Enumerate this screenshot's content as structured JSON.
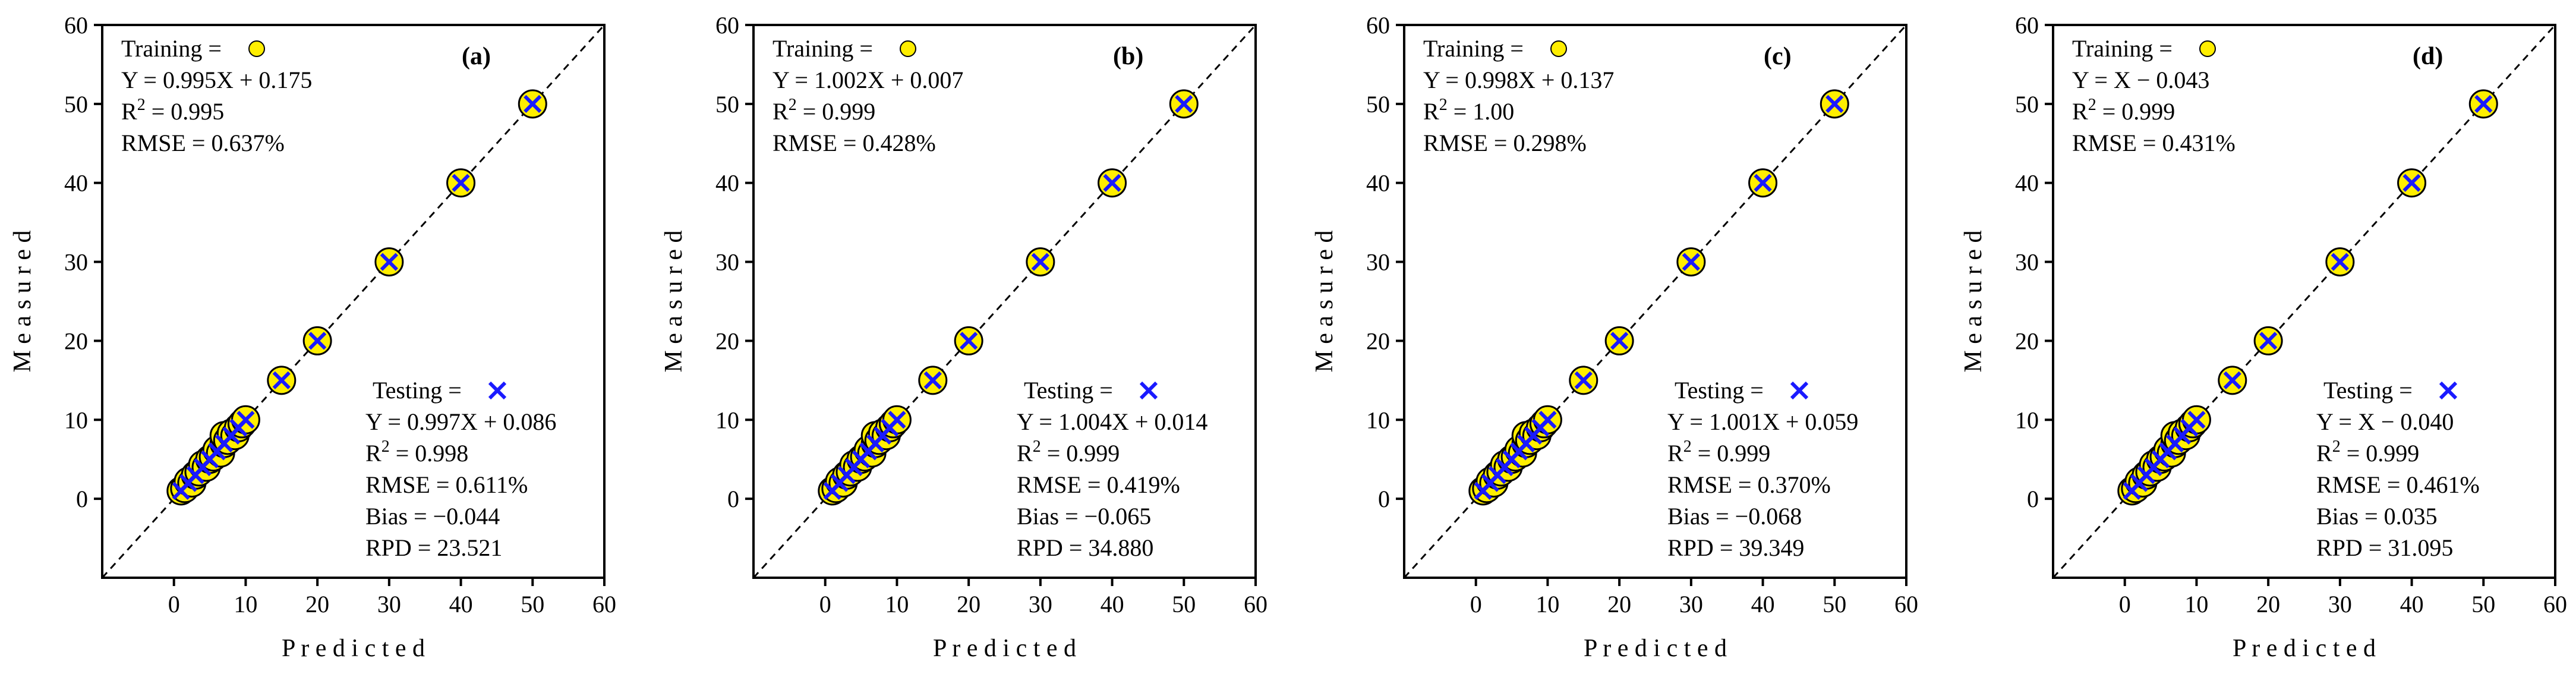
{
  "chart_data": [
    {
      "type": "scatter",
      "panel_label": "(a)",
      "xlabel": "P r e d i c t e d",
      "ylabel": "M e a s u r e d",
      "xlim": [
        -10,
        60
      ],
      "ylim": [
        -10,
        60
      ],
      "xticks": [
        "0",
        "10",
        "20",
        "30",
        "40",
        "50",
        "60"
      ],
      "yticks": [
        "0",
        "10",
        "20",
        "30",
        "40",
        "50",
        "60"
      ],
      "reference_line": "y = x",
      "training": {
        "legend": "Training =",
        "equation": "Y = 0.995X + 0.175",
        "r2_label": "R",
        "r2_value": " = 0.995",
        "rmse": "RMSE = 0.637%",
        "points": [
          [
            1,
            1
          ],
          [
            1.5,
            1.3
          ],
          [
            2,
            2.2
          ],
          [
            2.5,
            2
          ],
          [
            3,
            3
          ],
          [
            3.5,
            3.4
          ],
          [
            4,
            4.3
          ],
          [
            4.5,
            4
          ],
          [
            5,
            5
          ],
          [
            5.5,
            5.3
          ],
          [
            6,
            6.2
          ],
          [
            6.5,
            5.8
          ],
          [
            7,
            7
          ],
          [
            7,
            8
          ],
          [
            7.5,
            7.4
          ],
          [
            8,
            8.3
          ],
          [
            8.5,
            8
          ],
          [
            9,
            9
          ],
          [
            9.5,
            9.5
          ],
          [
            10,
            10
          ],
          [
            15,
            15
          ],
          [
            20,
            20
          ],
          [
            30,
            30
          ],
          [
            40,
            40
          ],
          [
            50,
            50
          ]
        ]
      },
      "testing": {
        "legend": "Testing =",
        "equation": "Y = 0.997X + 0.086",
        "r2_label": "R",
        "r2_value": " = 0.998",
        "rmse": "RMSE = 0.611%",
        "bias": "Bias = −0.044",
        "rpd": "RPD = 23.521",
        "points": [
          [
            1,
            1
          ],
          [
            2,
            2
          ],
          [
            3,
            3
          ],
          [
            4,
            4
          ],
          [
            5,
            5
          ],
          [
            6,
            6
          ],
          [
            7,
            7
          ],
          [
            8,
            8
          ],
          [
            9,
            9
          ],
          [
            10,
            10
          ],
          [
            15,
            15
          ],
          [
            20,
            20
          ],
          [
            30,
            30
          ],
          [
            40,
            40
          ],
          [
            50,
            50
          ]
        ]
      }
    },
    {
      "type": "scatter",
      "panel_label": "(b)",
      "xlabel": "P r e d i c t e d",
      "ylabel": "M e a s u r e d",
      "xlim": [
        -10,
        60
      ],
      "ylim": [
        -10,
        60
      ],
      "xticks": [
        "0",
        "10",
        "20",
        "30",
        "40",
        "50",
        "60"
      ],
      "yticks": [
        "0",
        "10",
        "20",
        "30",
        "40",
        "50",
        "60"
      ],
      "reference_line": "y = x",
      "training": {
        "legend": "Training =",
        "equation": "Y = 1.002X + 0.007",
        "r2_label": "R",
        "r2_value": " = 0.999",
        "rmse": "RMSE = 0.428%",
        "points": [
          [
            1,
            1
          ],
          [
            1.5,
            1.3
          ],
          [
            2,
            2.2
          ],
          [
            2.5,
            2
          ],
          [
            3,
            3
          ],
          [
            3.5,
            3.4
          ],
          [
            4,
            4.3
          ],
          [
            4.5,
            4
          ],
          [
            5,
            5
          ],
          [
            5.5,
            5.3
          ],
          [
            6,
            6.2
          ],
          [
            6.5,
            5.8
          ],
          [
            7,
            7
          ],
          [
            7,
            8
          ],
          [
            7.5,
            7.4
          ],
          [
            8,
            8.3
          ],
          [
            8.5,
            8
          ],
          [
            9,
            9
          ],
          [
            9.5,
            9.5
          ],
          [
            10,
            10
          ],
          [
            15,
            15
          ],
          [
            20,
            20
          ],
          [
            30,
            30
          ],
          [
            40,
            40
          ],
          [
            50,
            50
          ]
        ]
      },
      "testing": {
        "legend": "Testing =",
        "equation": "Y = 1.004X + 0.014",
        "r2_label": "R",
        "r2_value": " = 0.999",
        "rmse": "RMSE = 0.419%",
        "bias": "Bias = −0.065",
        "rpd": "RPD = 34.880",
        "points": [
          [
            1,
            1
          ],
          [
            2,
            2
          ],
          [
            3,
            3
          ],
          [
            4,
            4
          ],
          [
            5,
            5
          ],
          [
            6,
            6
          ],
          [
            7,
            7
          ],
          [
            8,
            8
          ],
          [
            9,
            9
          ],
          [
            10,
            10
          ],
          [
            15,
            15
          ],
          [
            20,
            20
          ],
          [
            30,
            30
          ],
          [
            40,
            40
          ],
          [
            50,
            50
          ]
        ]
      }
    },
    {
      "type": "scatter",
      "panel_label": "(c)",
      "xlabel": "P r e d i c t e d",
      "ylabel": "M e a s u r e d",
      "xlim": [
        -10,
        60
      ],
      "ylim": [
        -10,
        60
      ],
      "xticks": [
        "0",
        "10",
        "20",
        "30",
        "40",
        "50",
        "60"
      ],
      "yticks": [
        "0",
        "10",
        "20",
        "30",
        "40",
        "50",
        "60"
      ],
      "reference_line": "y = x",
      "training": {
        "legend": "Training =",
        "equation": "Y = 0.998X + 0.137",
        "r2_label": "R",
        "r2_value": " = 1.00",
        "rmse": "RMSE = 0.298%",
        "points": [
          [
            1,
            1
          ],
          [
            1.5,
            1.3
          ],
          [
            2,
            2.2
          ],
          [
            2.5,
            2
          ],
          [
            3,
            3
          ],
          [
            3.5,
            3.4
          ],
          [
            4,
            4.3
          ],
          [
            4.5,
            4
          ],
          [
            5,
            5
          ],
          [
            5.5,
            5.3
          ],
          [
            6,
            6.2
          ],
          [
            6.5,
            5.8
          ],
          [
            7,
            7
          ],
          [
            7,
            8
          ],
          [
            7.5,
            7.4
          ],
          [
            8,
            8.3
          ],
          [
            8.5,
            8
          ],
          [
            9,
            9
          ],
          [
            9.5,
            9.5
          ],
          [
            10,
            10
          ],
          [
            15,
            15
          ],
          [
            20,
            20
          ],
          [
            30,
            30
          ],
          [
            40,
            40
          ],
          [
            50,
            50
          ]
        ]
      },
      "testing": {
        "legend": "Testing =",
        "equation": "Y = 1.001X + 0.059",
        "r2_label": "R",
        "r2_value": " = 0.999",
        "rmse": "RMSE = 0.370%",
        "bias": "Bias = −0.068",
        "rpd": "RPD = 39.349",
        "points": [
          [
            1,
            1
          ],
          [
            2,
            2
          ],
          [
            3,
            3
          ],
          [
            4,
            4
          ],
          [
            5,
            5
          ],
          [
            6,
            6
          ],
          [
            7,
            7
          ],
          [
            8,
            8
          ],
          [
            9,
            9
          ],
          [
            10,
            10
          ],
          [
            15,
            15
          ],
          [
            20,
            20
          ],
          [
            30,
            30
          ],
          [
            40,
            40
          ],
          [
            50,
            50
          ]
        ]
      }
    },
    {
      "type": "scatter",
      "panel_label": "(d)",
      "xlabel": "P r e d i c t e d",
      "ylabel": "M e a s u r e d",
      "xlim": [
        -10,
        60
      ],
      "ylim": [
        -10,
        60
      ],
      "xticks": [
        "0",
        "10",
        "20",
        "30",
        "40",
        "50",
        "60"
      ],
      "yticks": [
        "0",
        "10",
        "20",
        "30",
        "40",
        "50",
        "60"
      ],
      "reference_line": "y = x",
      "training": {
        "legend": "Training =",
        "equation": "Y = X − 0.043",
        "r2_label": "R",
        "r2_value": " = 0.999",
        "rmse": "RMSE = 0.431%",
        "points": [
          [
            1,
            1
          ],
          [
            1.5,
            1.3
          ],
          [
            2,
            2.2
          ],
          [
            2.5,
            2
          ],
          [
            3,
            3
          ],
          [
            3.5,
            3.4
          ],
          [
            4,
            4.3
          ],
          [
            4.5,
            4
          ],
          [
            5,
            5
          ],
          [
            5.5,
            5.3
          ],
          [
            6,
            6.2
          ],
          [
            6.5,
            5.8
          ],
          [
            7,
            7
          ],
          [
            7,
            8
          ],
          [
            7.5,
            7.4
          ],
          [
            8,
            8.3
          ],
          [
            8.5,
            8
          ],
          [
            9,
            9
          ],
          [
            9.5,
            9.5
          ],
          [
            10,
            10
          ],
          [
            15,
            15
          ],
          [
            20,
            20
          ],
          [
            30,
            30
          ],
          [
            40,
            40
          ],
          [
            50,
            50
          ]
        ]
      },
      "testing": {
        "legend": "Testing =",
        "equation": "Y = X − 0.040",
        "r2_label": "R",
        "r2_value": " = 0.999",
        "rmse": "RMSE = 0.461%",
        "bias": "Bias = 0.035",
        "rpd": "RPD = 31.095",
        "points": [
          [
            1,
            1
          ],
          [
            2,
            2
          ],
          [
            3,
            3
          ],
          [
            4,
            4
          ],
          [
            5,
            5
          ],
          [
            6,
            6
          ],
          [
            7,
            7
          ],
          [
            8,
            8
          ],
          [
            9,
            9
          ],
          [
            10,
            10
          ],
          [
            15,
            15
          ],
          [
            20,
            20
          ],
          [
            30,
            30
          ],
          [
            40,
            40
          ],
          [
            50,
            50
          ]
        ]
      }
    }
  ],
  "colors": {
    "training_fill": "#ffee00",
    "training_edge": "#000000",
    "testing": "#1a1aff",
    "axis": "#000000"
  },
  "icons": {
    "training_marker": "yellow-circle-icon",
    "testing_marker": "blue-cross-icon"
  }
}
